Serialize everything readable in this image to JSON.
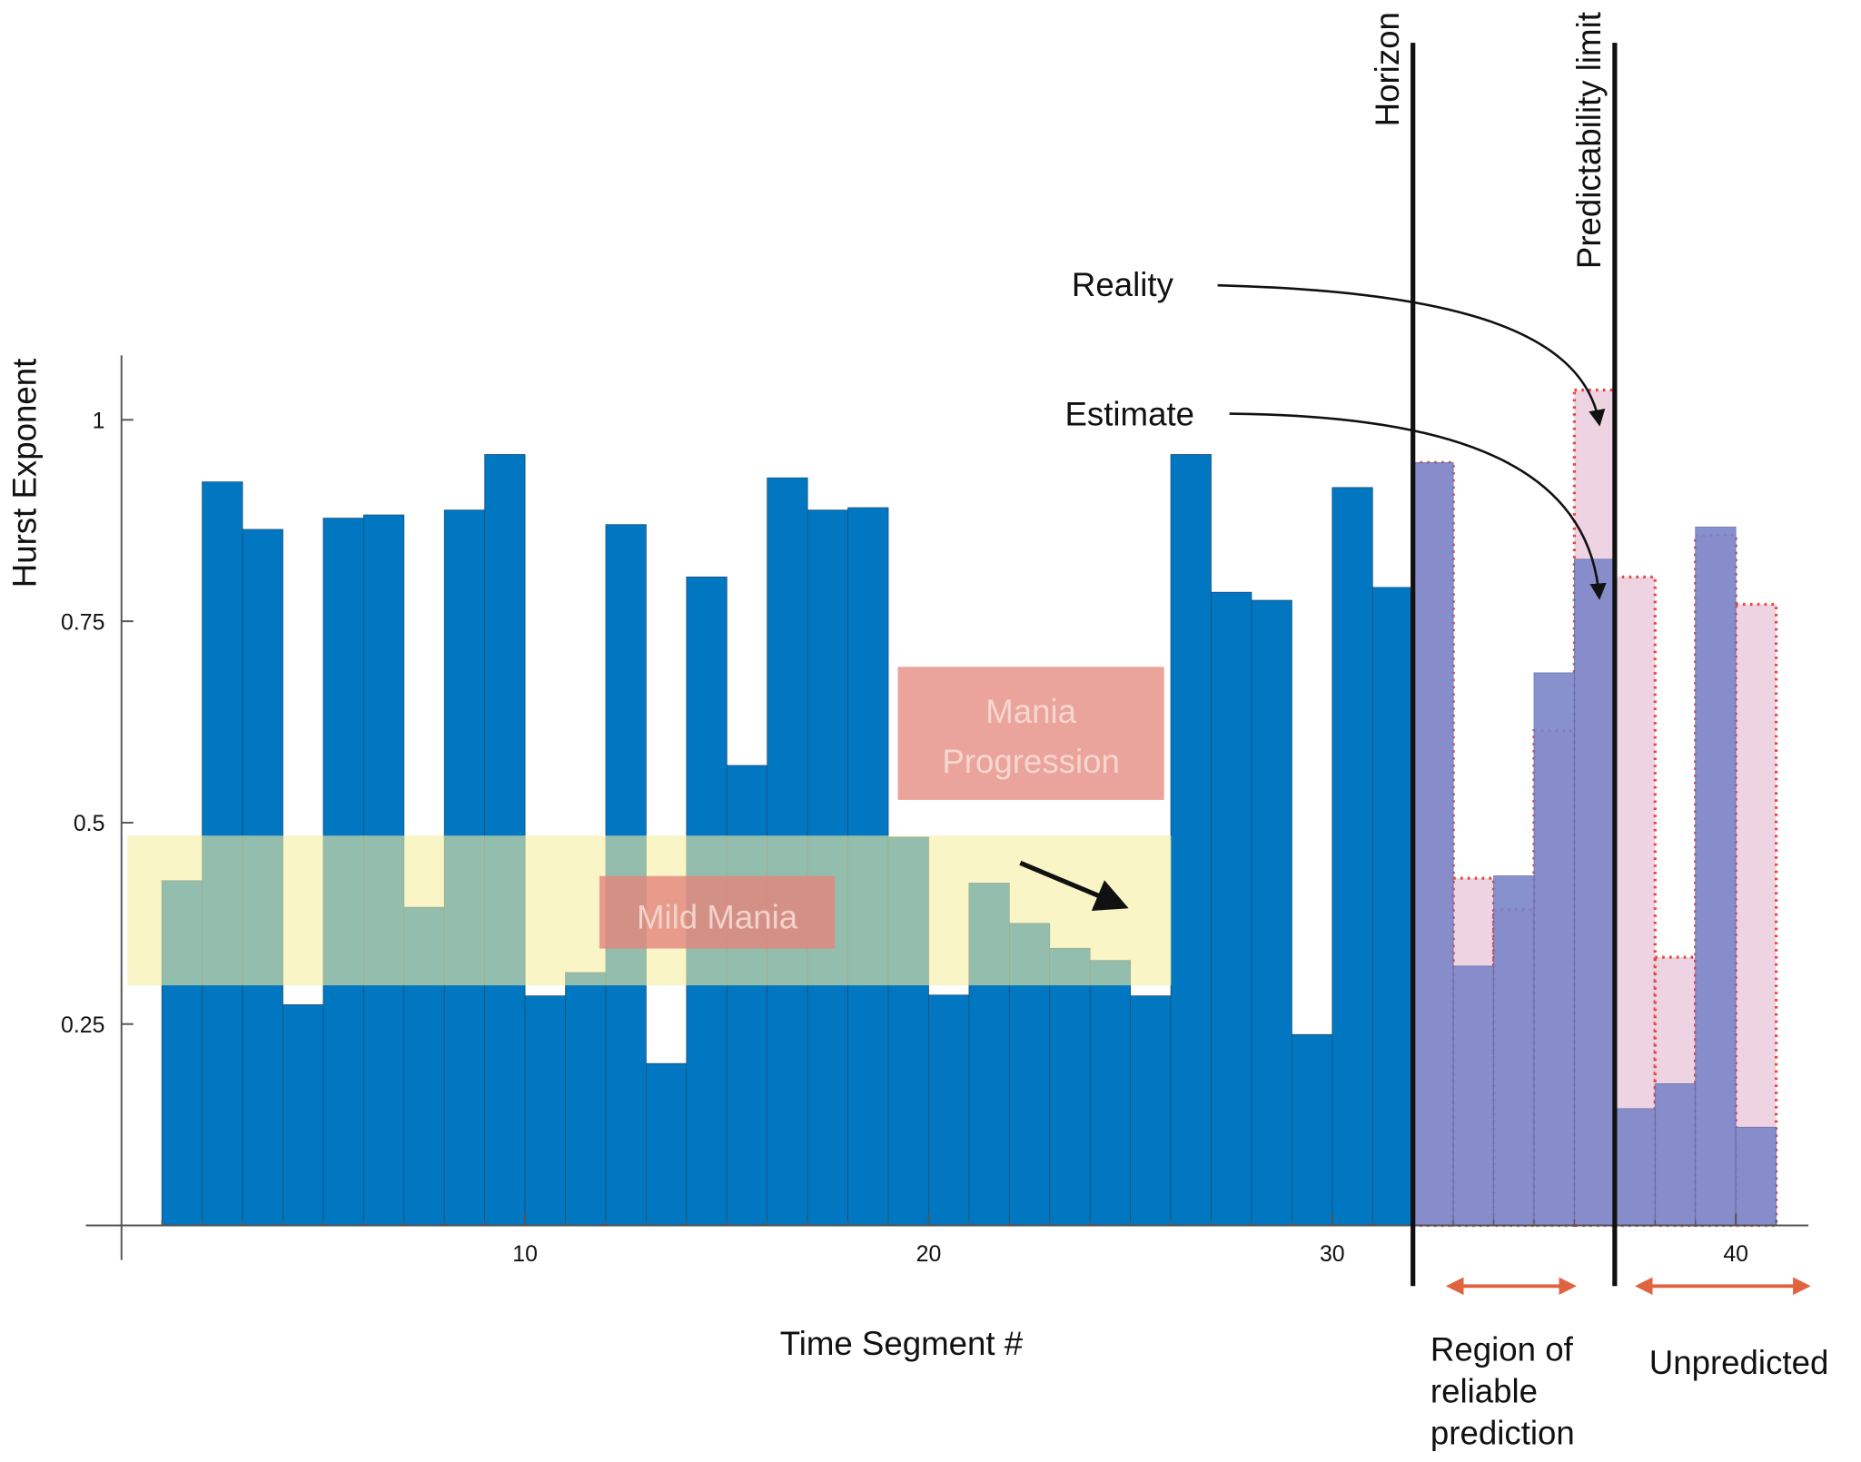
{
  "chart_data": {
    "type": "bar",
    "x_label": "Time Segment #",
    "y_label": "Hurst Exponent",
    "x": [
      1,
      2,
      3,
      4,
      5,
      6,
      7,
      8,
      9,
      10,
      11,
      12,
      13,
      14,
      15,
      16,
      17,
      18,
      19,
      20,
      21,
      22,
      23,
      24,
      25,
      26,
      27,
      28,
      29,
      30,
      31,
      32,
      33,
      34,
      35,
      36,
      37,
      38,
      39,
      40
    ],
    "series": [
      {
        "color": "#0077c0",
        "values": [
          0.428,
          0.923,
          0.864,
          0.274,
          0.878,
          0.882,
          0.395,
          0.888,
          0.957,
          0.285,
          0.314,
          0.87,
          0.201,
          0.805,
          0.571,
          0.928,
          0.888,
          0.891,
          0.482,
          0.286,
          0.425,
          0.375,
          0.344,
          0.329,
          0.285,
          0.957,
          0.786,
          0.776,
          0.237,
          0.916,
          0.792,
          null,
          null,
          null,
          null,
          null,
          null,
          null,
          null,
          null
        ]
      },
      {
        "name": "Reality",
        "color": "#eed3e3",
        "values": [
          null,
          null,
          null,
          null,
          null,
          null,
          null,
          null,
          null,
          null,
          null,
          null,
          null,
          null,
          null,
          null,
          null,
          null,
          null,
          null,
          null,
          null,
          null,
          null,
          null,
          null,
          null,
          null,
          null,
          null,
          null,
          0.947,
          0.431,
          0.392,
          0.614,
          1.037,
          0.805,
          0.333,
          0.857,
          0.771
        ]
      },
      {
        "name": "Estimate",
        "color": "#7b86c8",
        "values": [
          null,
          null,
          null,
          null,
          null,
          null,
          null,
          null,
          null,
          null,
          null,
          null,
          null,
          null,
          null,
          null,
          null,
          null,
          null,
          null,
          null,
          null,
          null,
          null,
          null,
          null,
          null,
          null,
          null,
          null,
          null,
          0.947,
          0.322,
          0.434,
          0.686,
          0.827,
          0.145,
          0.176,
          0.867,
          0.122
        ]
      }
    ],
    "xlim": [
      0,
      41.8
    ],
    "xticks": [
      10,
      20,
      30,
      40
    ],
    "ylim": [
      0,
      1.08
    ],
    "yticks": [
      0.25,
      0.5,
      0.75,
      1
    ],
    "vlines": [
      {
        "x": 32,
        "label": "Horizon"
      },
      {
        "x": 37,
        "label": "Predictability limit"
      }
    ],
    "annotations": {
      "mild_mania": "Mild Mania",
      "mania_progression": [
        "Mania",
        "Progression"
      ],
      "reliable_region": [
        "Region of",
        "reliable",
        "prediction"
      ],
      "unpredicted": "Unpredicted"
    }
  }
}
